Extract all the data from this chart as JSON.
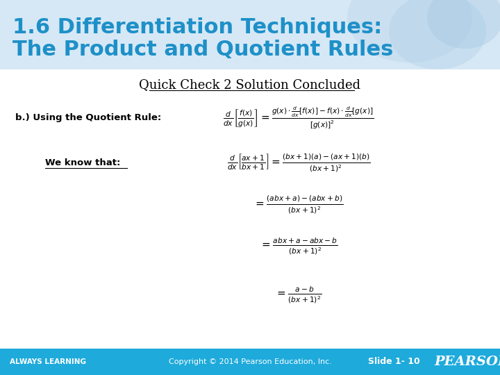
{
  "title_line1": "1.6 Differentiation Techniques:",
  "title_line2": "The Product and Quotient Rules",
  "title_color": "#1e90c8",
  "subtitle": "Quick Check 2 Solution Concluded",
  "footer_bg_color": "#1eaadb",
  "footer_text_color": "#ffffff",
  "footer_left": "ALWAYS LEARNING",
  "footer_center": "Copyright © 2014 Pearson Education, Inc.",
  "footer_right": "Slide 1- 10",
  "footer_brand": "PEARSON",
  "content_bg": "#ffffff",
  "header_bg": "#d6e8f5"
}
